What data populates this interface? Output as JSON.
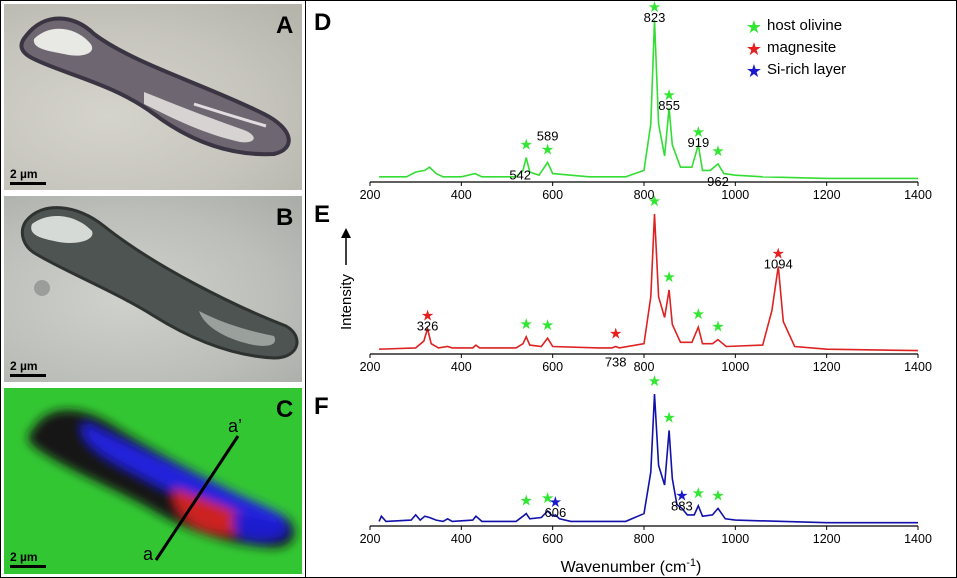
{
  "panels": {
    "a": "A",
    "b": "B",
    "c": "C",
    "d": "D",
    "e": "E",
    "f": "F"
  },
  "scale_bar": "2 µm",
  "section_line": {
    "start": "a",
    "end": "a’"
  },
  "legend": [
    {
      "label": "host olivine",
      "color": "#33e633"
    },
    {
      "label": "magnesite",
      "color": "#e62020"
    },
    {
      "label": "Si-rich layer",
      "color": "#1a1acc"
    }
  ],
  "y_label": "Intensity",
  "x_label": "Wavenumber (cm",
  "x_label_sup": "-1",
  "x_label_end": ")",
  "chart_data": [
    {
      "panel": "D",
      "type": "line",
      "color": "#33dd33",
      "xlim": [
        200,
        1400
      ],
      "x_ticks": [
        "200",
        "400",
        "600",
        "800",
        "1000",
        "1200",
        "1400"
      ],
      "series_points": [
        [
          220,
          0.02
        ],
        [
          280,
          0.02
        ],
        [
          300,
          0.05
        ],
        [
          320,
          0.06
        ],
        [
          330,
          0.08
        ],
        [
          345,
          0.04
        ],
        [
          360,
          0.02
        ],
        [
          400,
          0.02
        ],
        [
          430,
          0.04
        ],
        [
          445,
          0.02
        ],
        [
          520,
          0.02
        ],
        [
          535,
          0.06
        ],
        [
          542,
          0.14
        ],
        [
          550,
          0.05
        ],
        [
          570,
          0.03
        ],
        [
          589,
          0.11
        ],
        [
          600,
          0.04
        ],
        [
          680,
          0.02
        ],
        [
          760,
          0.02
        ],
        [
          800,
          0.06
        ],
        [
          815,
          0.35
        ],
        [
          823,
          1.0
        ],
        [
          832,
          0.35
        ],
        [
          845,
          0.15
        ],
        [
          855,
          0.45
        ],
        [
          862,
          0.22
        ],
        [
          880,
          0.08
        ],
        [
          905,
          0.08
        ],
        [
          919,
          0.22
        ],
        [
          928,
          0.06
        ],
        [
          945,
          0.06
        ],
        [
          962,
          0.1
        ],
        [
          975,
          0.04
        ],
        [
          1000,
          0.03
        ],
        [
          1060,
          0.02
        ],
        [
          1200,
          0.01
        ],
        [
          1400,
          0.01
        ]
      ],
      "peaks": [
        {
          "x": 542,
          "label": "542",
          "mineral": "host olivine"
        },
        {
          "x": 589,
          "label": "589",
          "mineral": "host olivine"
        },
        {
          "x": 823,
          "label": "823",
          "mineral": "host olivine"
        },
        {
          "x": 855,
          "label": "855",
          "mineral": "host olivine"
        },
        {
          "x": 919,
          "label": "919",
          "mineral": "host olivine"
        },
        {
          "x": 962,
          "label": "962",
          "mineral": "host olivine"
        }
      ]
    },
    {
      "panel": "E",
      "type": "line",
      "color": "#dd2222",
      "xlim": [
        200,
        1400
      ],
      "x_ticks": [
        "200",
        "400",
        "600",
        "800",
        "1000",
        "1200",
        "1400"
      ],
      "series_points": [
        [
          220,
          0.02
        ],
        [
          300,
          0.03
        ],
        [
          318,
          0.08
        ],
        [
          326,
          0.17
        ],
        [
          334,
          0.06
        ],
        [
          350,
          0.03
        ],
        [
          370,
          0.04
        ],
        [
          380,
          0.03
        ],
        [
          425,
          0.03
        ],
        [
          432,
          0.05
        ],
        [
          440,
          0.03
        ],
        [
          520,
          0.03
        ],
        [
          535,
          0.06
        ],
        [
          542,
          0.11
        ],
        [
          550,
          0.05
        ],
        [
          575,
          0.04
        ],
        [
          589,
          0.1
        ],
        [
          600,
          0.04
        ],
        [
          700,
          0.03
        ],
        [
          730,
          0.03
        ],
        [
          738,
          0.04
        ],
        [
          746,
          0.03
        ],
        [
          800,
          0.06
        ],
        [
          815,
          0.4
        ],
        [
          823,
          1.0
        ],
        [
          832,
          0.4
        ],
        [
          845,
          0.25
        ],
        [
          855,
          0.45
        ],
        [
          862,
          0.2
        ],
        [
          880,
          0.07
        ],
        [
          905,
          0.07
        ],
        [
          919,
          0.18
        ],
        [
          928,
          0.06
        ],
        [
          950,
          0.06
        ],
        [
          962,
          0.09
        ],
        [
          980,
          0.04
        ],
        [
          1060,
          0.05
        ],
        [
          1080,
          0.3
        ],
        [
          1094,
          0.62
        ],
        [
          1105,
          0.22
        ],
        [
          1130,
          0.04
        ],
        [
          1200,
          0.02
        ],
        [
          1400,
          0.01
        ]
      ],
      "peaks": [
        {
          "x": 326,
          "label": "326",
          "mineral": "magnesite"
        },
        {
          "x": 542,
          "label": "",
          "mineral": "host olivine"
        },
        {
          "x": 589,
          "label": "",
          "mineral": "host olivine"
        },
        {
          "x": 738,
          "label": "738",
          "mineral": "magnesite"
        },
        {
          "x": 823,
          "label": "",
          "mineral": "host olivine"
        },
        {
          "x": 855,
          "label": "",
          "mineral": "host olivine"
        },
        {
          "x": 919,
          "label": "",
          "mineral": "host olivine"
        },
        {
          "x": 962,
          "label": "",
          "mineral": "host olivine"
        },
        {
          "x": 1094,
          "label": "1094",
          "mineral": "magnesite"
        }
      ]
    },
    {
      "panel": "F",
      "type": "line",
      "color": "#1111aa",
      "xlim": [
        200,
        1400
      ],
      "x_ticks": [
        "200",
        "400",
        "600",
        "800",
        "1000",
        "1200",
        "1400"
      ],
      "series_points": [
        [
          220,
          0.02
        ],
        [
          225,
          0.06
        ],
        [
          235,
          0.02
        ],
        [
          290,
          0.03
        ],
        [
          300,
          0.07
        ],
        [
          310,
          0.03
        ],
        [
          320,
          0.06
        ],
        [
          330,
          0.05
        ],
        [
          345,
          0.03
        ],
        [
          360,
          0.02
        ],
        [
          370,
          0.04
        ],
        [
          380,
          0.02
        ],
        [
          425,
          0.03
        ],
        [
          432,
          0.06
        ],
        [
          445,
          0.02
        ],
        [
          520,
          0.02
        ],
        [
          535,
          0.06
        ],
        [
          542,
          0.08
        ],
        [
          550,
          0.04
        ],
        [
          575,
          0.05
        ],
        [
          589,
          0.1
        ],
        [
          600,
          0.06
        ],
        [
          606,
          0.07
        ],
        [
          615,
          0.04
        ],
        [
          640,
          0.02
        ],
        [
          760,
          0.02
        ],
        [
          800,
          0.08
        ],
        [
          815,
          0.4
        ],
        [
          823,
          1.0
        ],
        [
          832,
          0.45
        ],
        [
          845,
          0.3
        ],
        [
          855,
          0.72
        ],
        [
          862,
          0.35
        ],
        [
          872,
          0.15
        ],
        [
          883,
          0.12
        ],
        [
          895,
          0.07
        ],
        [
          910,
          0.07
        ],
        [
          919,
          0.14
        ],
        [
          928,
          0.06
        ],
        [
          950,
          0.07
        ],
        [
          962,
          0.12
        ],
        [
          978,
          0.04
        ],
        [
          1000,
          0.03
        ],
        [
          1200,
          0.01
        ],
        [
          1400,
          0.01
        ]
      ],
      "peaks": [
        {
          "x": 542,
          "label": "",
          "mineral": "host olivine"
        },
        {
          "x": 589,
          "label": "",
          "mineral": "host olivine"
        },
        {
          "x": 606,
          "label": "606",
          "mineral": "Si-rich layer"
        },
        {
          "x": 823,
          "label": "",
          "mineral": "host olivine"
        },
        {
          "x": 855,
          "label": "",
          "mineral": "host olivine"
        },
        {
          "x": 883,
          "label": "883",
          "mineral": "Si-rich layer"
        },
        {
          "x": 919,
          "label": "",
          "mineral": "host olivine"
        },
        {
          "x": 962,
          "label": "",
          "mineral": "host olivine"
        }
      ]
    }
  ]
}
